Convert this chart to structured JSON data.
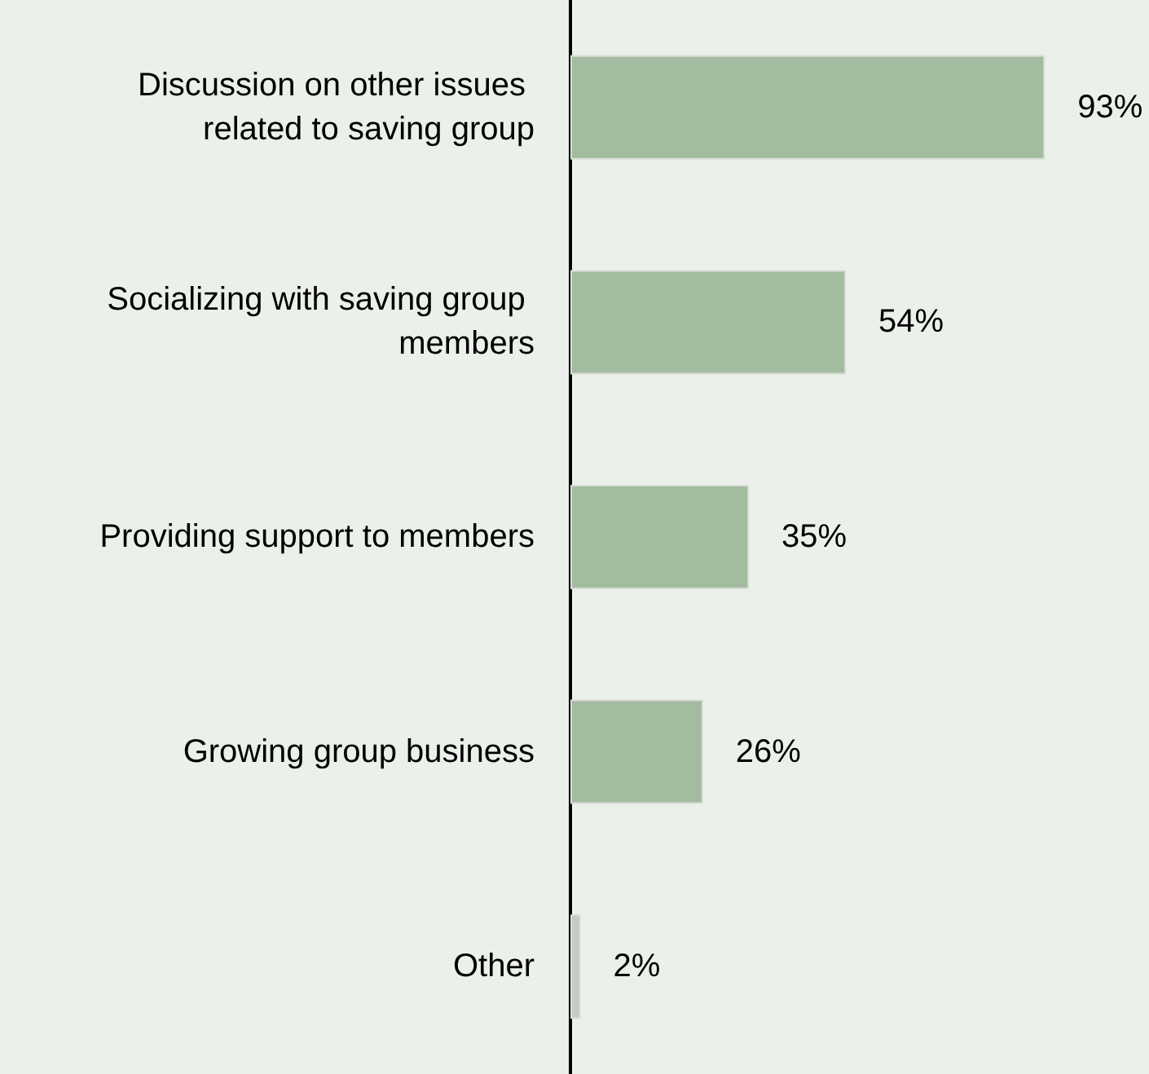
{
  "chart_data": {
    "type": "bar",
    "orientation": "horizontal",
    "categories": [
      "Discussion on other issues related to saving group",
      "Socializing with saving group members",
      "Providing support to members",
      "Growing group business",
      "Other"
    ],
    "values": [
      93,
      54,
      35,
      26,
      2
    ],
    "colors": [
      "#a3bb9f",
      "#a3bb9f",
      "#a3bb9f",
      "#a3bb9f",
      "#c6c9c5"
    ],
    "value_labels": [
      "93%",
      "54%",
      "35%",
      "26%",
      "2%"
    ]
  }
}
